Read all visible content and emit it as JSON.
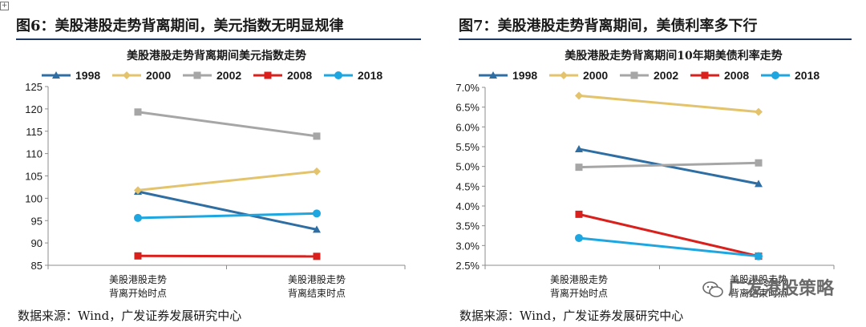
{
  "corner_mark": "+",
  "left_panel": {
    "figure_title": "图6：美股港股走势背离期间，美元指数无明显规律",
    "source": "数据来源：Wind，广发证券发展研究中心"
  },
  "right_panel": {
    "figure_title": "图7：美股港股走势背离期间，美债利率多下行",
    "source": "数据来源：Wind，广发证券发展研究中心"
  },
  "watermark": {
    "text": "广发港股策略",
    "icon": "wechat-icon"
  },
  "colors": {
    "1998": "#2e6ea3",
    "2000": "#e3c36b",
    "2002": "#a6a6a6",
    "2008": "#d9201c",
    "2018": "#1ea6e0",
    "rule": "#1f3864"
  },
  "chart_data": [
    {
      "type": "line",
      "title": "美股港股走势背离期间美元指数走势",
      "categories": [
        "美股港股走势\n背离开始时点",
        "美股港股走势\n背离结束时点"
      ],
      "ylim": [
        85,
        125
      ],
      "yticks": [
        85,
        90,
        95,
        100,
        105,
        110,
        115,
        120,
        125
      ],
      "ytick_labels": [
        "85",
        "90",
        "95",
        "100",
        "105",
        "110",
        "115",
        "120",
        "125"
      ],
      "grid": false,
      "legend": "top",
      "series": [
        {
          "name": "1998",
          "values": [
            101.5,
            93.0
          ],
          "marker": "triangle"
        },
        {
          "name": "2000",
          "values": [
            101.8,
            106.0
          ],
          "marker": "diamond"
        },
        {
          "name": "2002",
          "values": [
            119.3,
            113.9
          ],
          "marker": "square"
        },
        {
          "name": "2008",
          "values": [
            87.1,
            87.0
          ],
          "marker": "square"
        },
        {
          "name": "2018",
          "values": [
            95.6,
            96.6
          ],
          "marker": "circle"
        }
      ]
    },
    {
      "type": "line",
      "title": "美股港股走势背离期间10年期美债利率走势",
      "categories": [
        "美股港股走势\n背离开始时点",
        "美股港股走势\n背离结束时点"
      ],
      "ylim": [
        2.5,
        7.0
      ],
      "yticks": [
        2.5,
        3.0,
        3.5,
        4.0,
        4.5,
        5.0,
        5.5,
        6.0,
        6.5,
        7.0
      ],
      "ytick_labels": [
        "2.5%",
        "3.0%",
        "3.5%",
        "4.0%",
        "4.5%",
        "5.0%",
        "5.5%",
        "6.0%",
        "6.5%",
        "7.0%"
      ],
      "grid": false,
      "legend": "top",
      "series": [
        {
          "name": "1998",
          "values": [
            5.44,
            4.56
          ],
          "marker": "triangle"
        },
        {
          "name": "2000",
          "values": [
            6.79,
            6.38
          ],
          "marker": "diamond"
        },
        {
          "name": "2002",
          "values": [
            4.98,
            5.09
          ],
          "marker": "square"
        },
        {
          "name": "2008",
          "values": [
            3.79,
            2.73
          ],
          "marker": "square"
        },
        {
          "name": "2018",
          "values": [
            3.19,
            2.73
          ],
          "marker": "circle"
        }
      ]
    }
  ]
}
